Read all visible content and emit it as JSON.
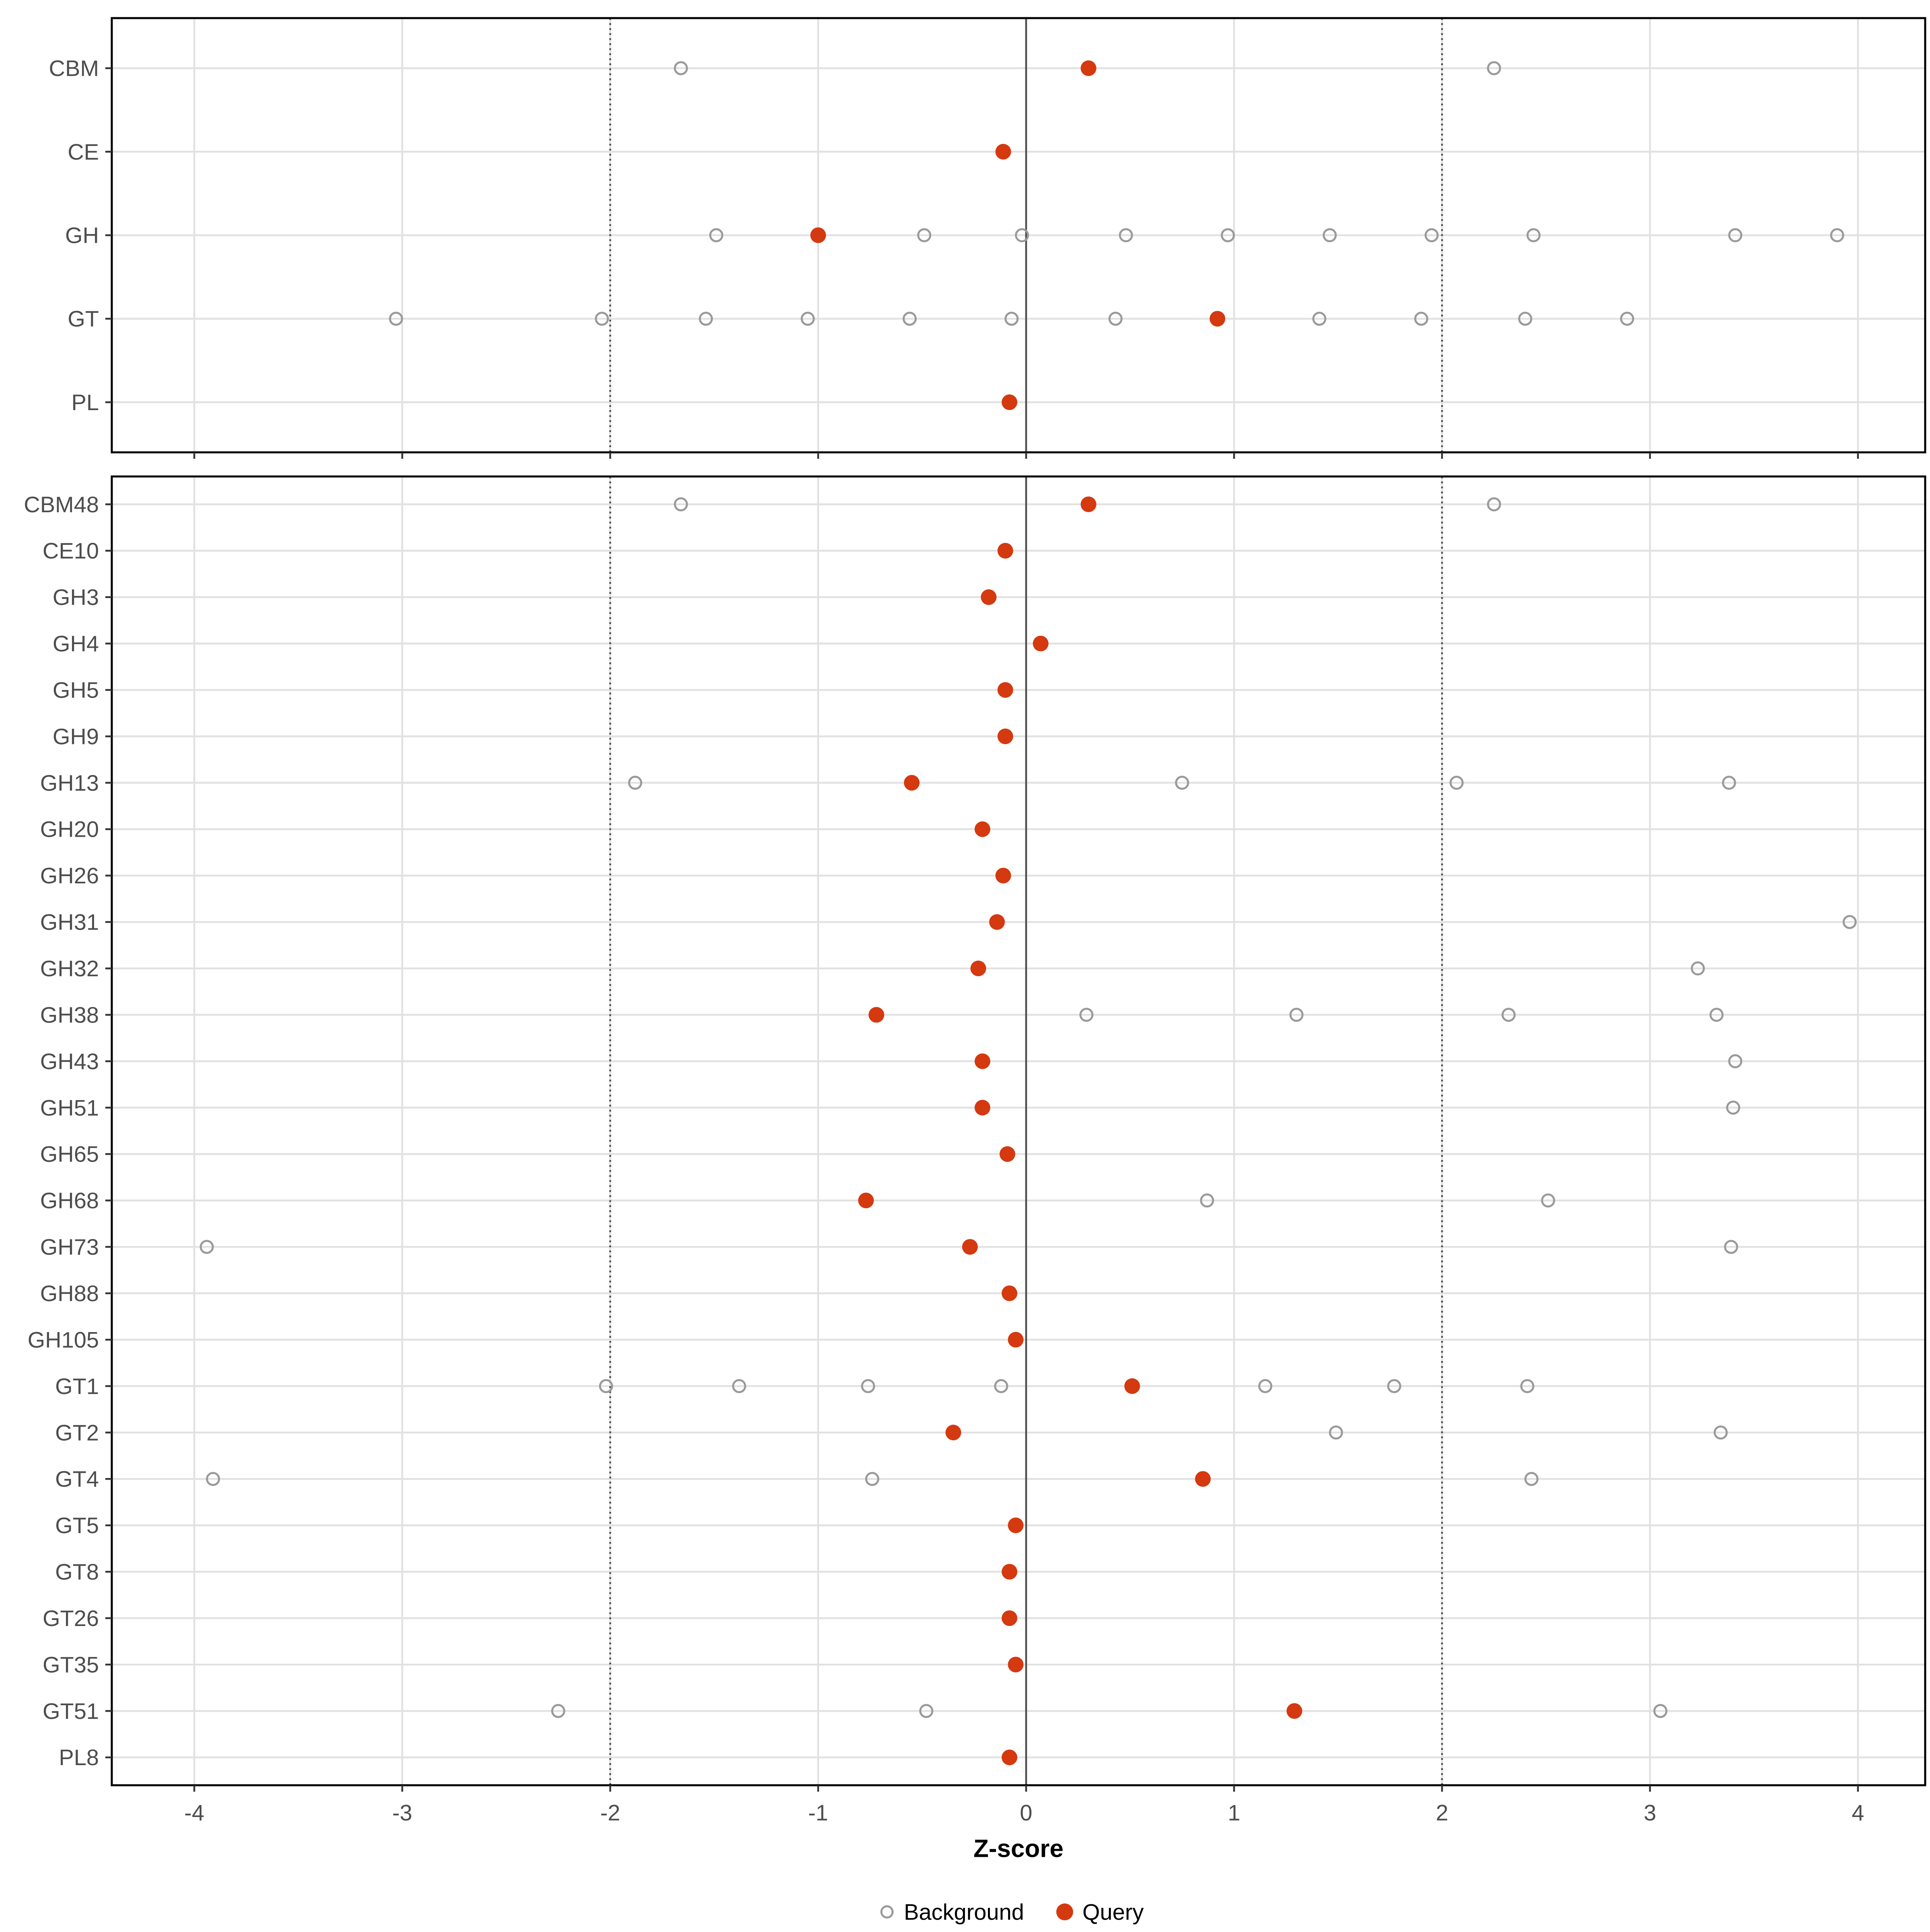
{
  "chart_data": {
    "type": "scatter",
    "subtype": "horizontal-dot-plot",
    "title": "",
    "xlabel": "Z-score",
    "ylabel": "",
    "x_range": [
      -4.4,
      4.33
    ],
    "x_ticks": [
      -4,
      -3,
      -2,
      -1,
      0,
      1,
      2,
      3,
      4
    ],
    "x_tick_labels": [
      "-4",
      "-3",
      "-2",
      "-1",
      "0",
      "1",
      "2",
      "3",
      "4"
    ],
    "grid": true,
    "reference_lines": {
      "solid": [
        0
      ],
      "dotted": [
        -2,
        2
      ]
    },
    "legend_position": "bottom",
    "legend": [
      {
        "label": "Background",
        "marker": "open-circle",
        "color": "#9A9A9A"
      },
      {
        "label": "Query",
        "marker": "filled-circle",
        "color": "#D4390F"
      }
    ],
    "style": {
      "query_color": "#D4390F",
      "background_stroke": "#9A9A9A",
      "gridline_color": "#E1E1E1",
      "refline_color": "#4D4D4D",
      "panel_border_color": "#000000",
      "axis_text_color": "#4D4D4D",
      "tick_color": "#333333"
    },
    "panels": [
      {
        "id": "families",
        "rows": [
          {
            "label": "CBM",
            "query": 0.3,
            "background": [
              -1.66,
              2.25
            ]
          },
          {
            "label": "CE",
            "query": -0.11,
            "background": []
          },
          {
            "label": "GH",
            "query": -1.0,
            "background": [
              -1.49,
              -0.49,
              -0.02,
              0.48,
              0.97,
              1.46,
              1.95,
              2.44,
              3.41,
              3.9
            ]
          },
          {
            "label": "GT",
            "query": 0.92,
            "background": [
              -3.03,
              -2.04,
              -1.54,
              -1.05,
              -0.56,
              -0.07,
              0.43,
              1.41,
              1.9,
              2.4,
              2.89
            ]
          },
          {
            "label": "PL",
            "query": -0.08,
            "background": []
          }
        ]
      },
      {
        "id": "subfamilies",
        "rows": [
          {
            "label": "CBM48",
            "query": 0.3,
            "background": [
              -1.66,
              2.25
            ]
          },
          {
            "label": "CE10",
            "query": -0.1,
            "background": []
          },
          {
            "label": "GH3",
            "query": -0.18,
            "background": []
          },
          {
            "label": "GH4",
            "query": 0.07,
            "background": []
          },
          {
            "label": "GH5",
            "query": -0.1,
            "background": []
          },
          {
            "label": "GH9",
            "query": -0.1,
            "background": []
          },
          {
            "label": "GH13",
            "query": -0.55,
            "background": [
              -1.88,
              0.75,
              2.07,
              3.38
            ]
          },
          {
            "label": "GH20",
            "query": -0.21,
            "background": []
          },
          {
            "label": "GH26",
            "query": -0.11,
            "background": []
          },
          {
            "label": "GH31",
            "query": -0.14,
            "background": [
              3.96
            ]
          },
          {
            "label": "GH32",
            "query": -0.23,
            "background": [
              3.23
            ]
          },
          {
            "label": "GH38",
            "query": -0.72,
            "background": [
              0.29,
              1.3,
              2.32,
              3.32
            ]
          },
          {
            "label": "GH43",
            "query": -0.21,
            "background": [
              3.41
            ]
          },
          {
            "label": "GH51",
            "query": -0.21,
            "background": [
              3.4
            ]
          },
          {
            "label": "GH65",
            "query": -0.09,
            "background": []
          },
          {
            "label": "GH68",
            "query": -0.77,
            "background": [
              0.87,
              2.51
            ]
          },
          {
            "label": "GH73",
            "query": -0.27,
            "background": [
              -3.94,
              3.39
            ]
          },
          {
            "label": "GH88",
            "query": -0.08,
            "background": []
          },
          {
            "label": "GH105",
            "query": -0.05,
            "background": []
          },
          {
            "label": "GT1",
            "query": 0.51,
            "background": [
              -2.02,
              -1.38,
              -0.76,
              -0.12,
              1.15,
              1.77,
              2.41
            ]
          },
          {
            "label": "GT2",
            "query": -0.35,
            "background": [
              1.49,
              3.34
            ]
          },
          {
            "label": "GT4",
            "query": 0.85,
            "background": [
              -3.91,
              -0.74,
              2.43
            ]
          },
          {
            "label": "GT5",
            "query": -0.05,
            "background": []
          },
          {
            "label": "GT8",
            "query": -0.08,
            "background": []
          },
          {
            "label": "GT26",
            "query": -0.08,
            "background": []
          },
          {
            "label": "GT35",
            "query": -0.05,
            "background": []
          },
          {
            "label": "GT51",
            "query": 1.29,
            "background": [
              -2.25,
              -0.48,
              3.05
            ]
          },
          {
            "label": "PL8",
            "query": -0.08,
            "background": []
          }
        ]
      }
    ]
  }
}
